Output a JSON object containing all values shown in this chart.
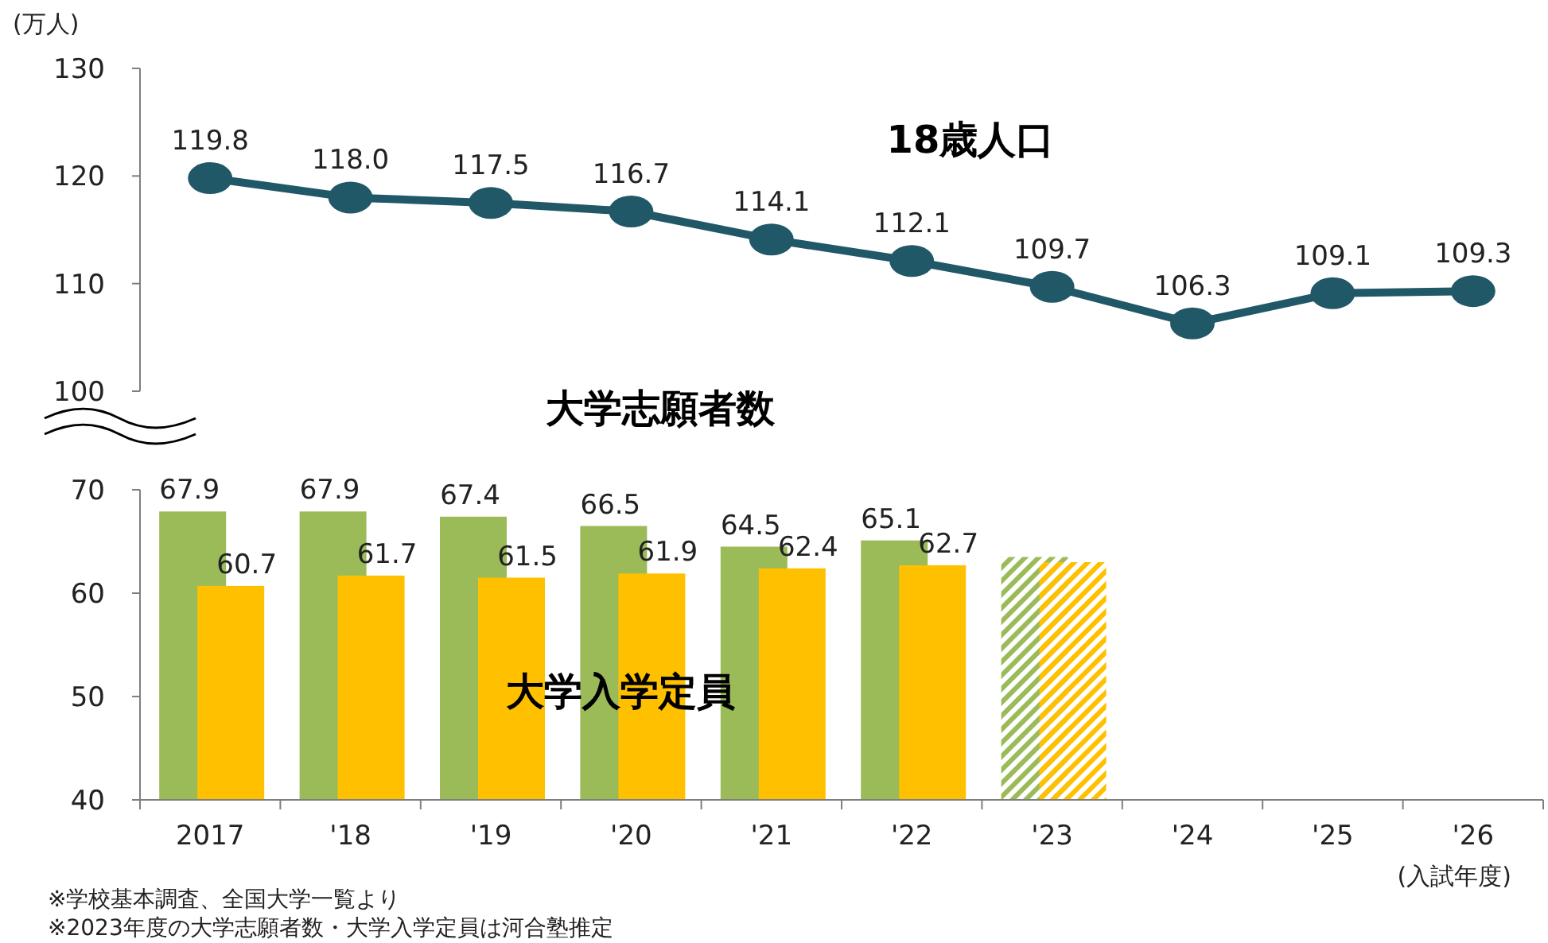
{
  "chart_data": [
    {
      "type": "line",
      "ylabel": "(万人)",
      "categories": [
        null,
        null,
        null,
        null,
        null,
        null,
        null,
        null,
        null,
        null
      ],
      "tick_labels": "y",
      "ylim": [
        100,
        130
      ],
      "yticks": [
        100,
        110,
        120,
        130
      ],
      "marker": "circle",
      "series": [
        {
          "name": "18歳人口",
          "color": "#215868",
          "values": [
            119.8,
            118.0,
            117.5,
            116.7,
            114.1,
            112.1,
            109.7,
            106.3,
            109.1,
            109.3
          ],
          "value_labels": [
            "119.8",
            "118.0",
            "117.5",
            "116.7",
            "114.1",
            "112.1",
            "109.7",
            "106.3",
            "109.1",
            "109.3"
          ]
        }
      ]
    },
    {
      "type": "bar",
      "xlabel": "(入試年度)",
      "categories": [
        "2017",
        "'18",
        "'19",
        "'20",
        "'21",
        "'22",
        "'23",
        "'24",
        "'25",
        "'26"
      ],
      "ylim": [
        40,
        70
      ],
      "yticks": [
        40,
        50,
        60,
        70
      ],
      "series": [
        {
          "name": "大学志願者数",
          "color": "#9bbb59",
          "values": [
            67.9,
            67.9,
            67.4,
            66.5,
            64.5,
            65.1,
            63.5,
            null,
            null,
            null
          ],
          "value_labels": [
            "67.9",
            "67.9",
            "67.4",
            "66.5",
            "64.5",
            "65.1",
            null,
            null,
            null,
            null
          ]
        },
        {
          "name": "大学入学定員",
          "color": "#ffc000",
          "values": [
            60.7,
            61.7,
            61.5,
            61.9,
            62.4,
            62.7,
            63.0,
            null,
            null,
            null
          ],
          "value_labels": [
            "60.7",
            "61.7",
            "61.5",
            "61.9",
            "62.4",
            "62.7",
            null,
            null,
            null,
            null
          ]
        }
      ],
      "annotations": [
        "※学校基本調査、全国大学一覧より",
        "※2023年度の大学志願者数・大学入学定員は河合塾推定"
      ]
    }
  ]
}
